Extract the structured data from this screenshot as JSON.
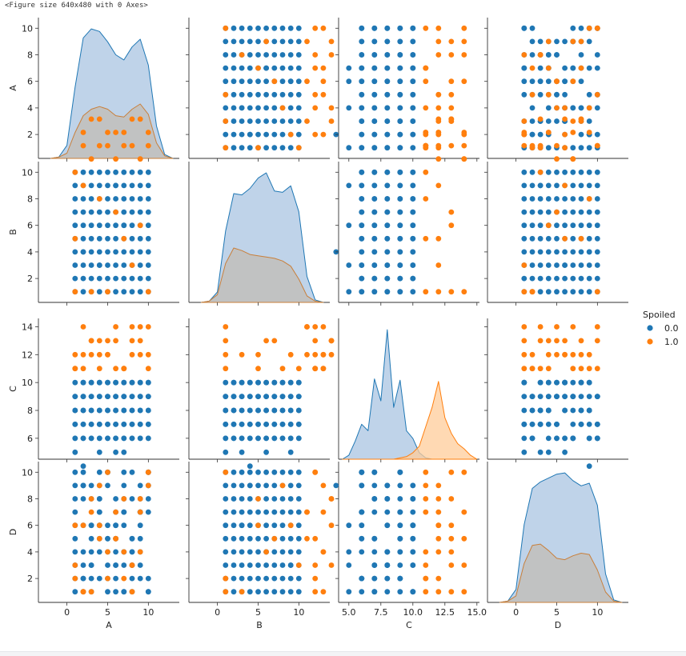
{
  "note": "<Figure size 640x480 with 0 Axes>",
  "colors": {
    "class0": "#1f77b4",
    "class1": "#ff7f0e",
    "kde0_fill": "#aac4e2",
    "kde1_fill": "#c2bcb4",
    "kde1_line": "#c97f3a"
  },
  "chart_data": {
    "type": "pairplot",
    "variables": [
      "A",
      "B",
      "C",
      "D"
    ],
    "hue": {
      "title": "Spoiled",
      "levels": [
        "0.0",
        "1.0"
      ]
    },
    "ranges": {
      "A": [
        -3.5,
        13.8
      ],
      "B": [
        -3.5,
        13.8
      ],
      "C": [
        4.2,
        15.2
      ],
      "D": [
        -3.5,
        13.8
      ]
    },
    "ticks": {
      "A": [
        0,
        5,
        10
      ],
      "B": [
        0,
        5,
        10
      ],
      "C": [
        5.0,
        7.5,
        10.0,
        12.5,
        15.0
      ],
      "D": [
        0,
        5,
        10
      ]
    },
    "tick_labels": {
      "A": [
        "0",
        "5",
        "10"
      ],
      "B": [
        "0",
        "5",
        "10"
      ],
      "C": [
        "5.0",
        "7.5",
        "10.0",
        "12.5",
        "15.0"
      ],
      "D": [
        "0",
        "5",
        "10"
      ]
    },
    "y_ticks_int": [
      2,
      4,
      6,
      8,
      10
    ],
    "y_ticks_C": [
      6,
      8,
      10,
      12,
      14
    ],
    "kde": {
      "A": {
        "grid": [
          -2,
          -1,
          0,
          1,
          2,
          3,
          4,
          5,
          6,
          7,
          8,
          9,
          10,
          11,
          12,
          13
        ],
        "class0": [
          0,
          0.01,
          0.1,
          0.55,
          0.93,
          1.0,
          0.98,
          0.9,
          0.8,
          0.76,
          0.86,
          0.92,
          0.72,
          0.25,
          0.03,
          0
        ],
        "class1": [
          0,
          0.01,
          0.04,
          0.2,
          0.33,
          0.38,
          0.4,
          0.38,
          0.33,
          0.32,
          0.38,
          0.42,
          0.34,
          0.12,
          0.02,
          0
        ]
      },
      "B": {
        "grid": [
          -2,
          -1,
          0,
          1,
          2,
          3,
          4,
          5,
          6,
          7,
          8,
          9,
          10,
          11,
          12,
          13
        ],
        "class0": [
          0,
          0.01,
          0.08,
          0.55,
          0.84,
          0.83,
          0.88,
          0.96,
          1.0,
          0.86,
          0.85,
          0.9,
          0.7,
          0.2,
          0.02,
          0
        ],
        "class1": [
          0,
          0.01,
          0.06,
          0.3,
          0.42,
          0.4,
          0.37,
          0.36,
          0.35,
          0.34,
          0.32,
          0.28,
          0.18,
          0.05,
          0.01,
          0
        ]
      },
      "C": {
        "grid": [
          4.5,
          5.0,
          5.5,
          6.0,
          6.5,
          7.0,
          7.5,
          8.0,
          8.5,
          9.0,
          9.5,
          10.0,
          10.5,
          11.0,
          11.5,
          12.0,
          12.5,
          13.0,
          13.5,
          14.0,
          14.5,
          15.0
        ],
        "class0": [
          0,
          0.03,
          0.14,
          0.27,
          0.22,
          0.62,
          0.45,
          1.0,
          0.4,
          0.61,
          0.22,
          0.16,
          0.05,
          0.01,
          0,
          0,
          0,
          0,
          0,
          0,
          0,
          0
        ],
        "class1": [
          0,
          0,
          0,
          0,
          0,
          0,
          0,
          0,
          0,
          0.01,
          0.02,
          0.05,
          0.1,
          0.25,
          0.4,
          0.6,
          0.32,
          0.2,
          0.12,
          0.08,
          0.03,
          0
        ]
      },
      "D": {
        "grid": [
          -2,
          -1,
          0,
          1,
          2,
          3,
          4,
          5,
          6,
          7,
          8,
          9,
          10,
          11,
          12,
          13
        ],
        "class0": [
          0,
          0.01,
          0.1,
          0.6,
          0.88,
          0.93,
          0.96,
          0.99,
          1.0,
          0.94,
          0.9,
          0.92,
          0.75,
          0.22,
          0.02,
          0
        ],
        "class1": [
          0,
          0.01,
          0.05,
          0.3,
          0.44,
          0.45,
          0.4,
          0.34,
          0.33,
          0.36,
          0.38,
          0.37,
          0.25,
          0.08,
          0.01,
          0
        ]
      }
    },
    "points_class0": [
      [
        1,
        1,
        5,
        1
      ],
      [
        2,
        1,
        6,
        2
      ],
      [
        3,
        1,
        7,
        3
      ],
      [
        4,
        1,
        8,
        4
      ],
      [
        5,
        1,
        9,
        5
      ],
      [
        6,
        1,
        10,
        6
      ],
      [
        7,
        1,
        6,
        7
      ],
      [
        8,
        1,
        7,
        8
      ],
      [
        9,
        1,
        8,
        9
      ],
      [
        10,
        1,
        9,
        10
      ],
      [
        1,
        2,
        6,
        10
      ],
      [
        2,
        2,
        7,
        9
      ],
      [
        3,
        2,
        8,
        8
      ],
      [
        4,
        2,
        9,
        7
      ],
      [
        5,
        2,
        10,
        6
      ],
      [
        6,
        2,
        6,
        5
      ],
      [
        7,
        2,
        7,
        4
      ],
      [
        8,
        2,
        8,
        3
      ],
      [
        9,
        2,
        9,
        2
      ],
      [
        10,
        2,
        10,
        1
      ],
      [
        1,
        3,
        7,
        2
      ],
      [
        2,
        3,
        8,
        4
      ],
      [
        3,
        3,
        9,
        6
      ],
      [
        4,
        3,
        10,
        8
      ],
      [
        5,
        3,
        6,
        10
      ],
      [
        6,
        3,
        7,
        1
      ],
      [
        7,
        3,
        8,
        3
      ],
      [
        8,
        3,
        9,
        5
      ],
      [
        9,
        3,
        10,
        7
      ],
      [
        10,
        3,
        6,
        9
      ],
      [
        1,
        4,
        8,
        3
      ],
      [
        2,
        4,
        9,
        6
      ],
      [
        3,
        4,
        10,
        9
      ],
      [
        4,
        4,
        6,
        2
      ],
      [
        5,
        4,
        7,
        5
      ],
      [
        6,
        4,
        8,
        8
      ],
      [
        7,
        4,
        9,
        1
      ],
      [
        8,
        4,
        10,
        4
      ],
      [
        9,
        4,
        6,
        7
      ],
      [
        10,
        4,
        7,
        10
      ],
      [
        1,
        5,
        9,
        4
      ],
      [
        2,
        5,
        10,
        8
      ],
      [
        3,
        5,
        6,
        1
      ],
      [
        4,
        5,
        7,
        5
      ],
      [
        5,
        5,
        8,
        9
      ],
      [
        6,
        5,
        9,
        2
      ],
      [
        7,
        5,
        10,
        6
      ],
      [
        8,
        5,
        6,
        10
      ],
      [
        9,
        5,
        7,
        3
      ],
      [
        10,
        5,
        8,
        7
      ],
      [
        1,
        6,
        10,
        5
      ],
      [
        2,
        6,
        6,
        9
      ],
      [
        3,
        6,
        7,
        2
      ],
      [
        4,
        6,
        8,
        6
      ],
      [
        5,
        6,
        9,
        10
      ],
      [
        6,
        6,
        10,
        3
      ],
      [
        7,
        6,
        6,
        7
      ],
      [
        8,
        6,
        7,
        1
      ],
      [
        9,
        6,
        8,
        4
      ],
      [
        10,
        6,
        9,
        8
      ],
      [
        1,
        7,
        6,
        6
      ],
      [
        2,
        7,
        7,
        10
      ],
      [
        3,
        7,
        8,
        3
      ],
      [
        4,
        7,
        9,
        7
      ],
      [
        5,
        7,
        10,
        1
      ],
      [
        6,
        7,
        6,
        4
      ],
      [
        7,
        7,
        7,
        8
      ],
      [
        8,
        7,
        8,
        2
      ],
      [
        9,
        7,
        9,
        5
      ],
      [
        10,
        7,
        10,
        9
      ],
      [
        1,
        8,
        7,
        7
      ],
      [
        2,
        8,
        8,
        1
      ],
      [
        3,
        8,
        9,
        4
      ],
      [
        4,
        8,
        10,
        8
      ],
      [
        5,
        8,
        6,
        2
      ],
      [
        6,
        8,
        7,
        5
      ],
      [
        7,
        8,
        8,
        9
      ],
      [
        8,
        8,
        9,
        3
      ],
      [
        9,
        8,
        10,
        6
      ],
      [
        10,
        8,
        6,
        10
      ],
      [
        1,
        9,
        8,
        8
      ],
      [
        2,
        9,
        9,
        2
      ],
      [
        3,
        9,
        10,
        5
      ],
      [
        4,
        9,
        6,
        9
      ],
      [
        5,
        9,
        7,
        3
      ],
      [
        6,
        9,
        8,
        6
      ],
      [
        7,
        9,
        9,
        10
      ],
      [
        8,
        9,
        10,
        4
      ],
      [
        9,
        9,
        6,
        7
      ],
      [
        10,
        9,
        7,
        1
      ],
      [
        1,
        10,
        9,
        9
      ],
      [
        2,
        10,
        10,
        3
      ],
      [
        3,
        10,
        6,
        6
      ],
      [
        4,
        10,
        7,
        10
      ],
      [
        5,
        10,
        8,
        4
      ],
      [
        6,
        10,
        9,
        7
      ],
      [
        7,
        10,
        10,
        1
      ],
      [
        8,
        10,
        6,
        5
      ],
      [
        9,
        10,
        7,
        8
      ],
      [
        10,
        10,
        8,
        2
      ],
      [
        4,
        3,
        5,
        6
      ],
      [
        7,
        6,
        5,
        4
      ],
      [
        2,
        4,
        4,
        9
      ],
      [
        6,
        9,
        5,
        3
      ]
    ],
    "points_class1": [
      [
        1,
        10,
        11,
        3
      ],
      [
        2,
        9,
        12,
        6
      ],
      [
        3,
        1,
        13,
        1
      ],
      [
        4,
        8,
        11,
        9
      ],
      [
        5,
        1,
        12,
        2
      ],
      [
        6,
        7,
        13,
        5
      ],
      [
        7,
        5,
        11,
        8
      ],
      [
        8,
        3,
        12,
        1
      ],
      [
        9,
        6,
        13,
        4
      ],
      [
        10,
        1,
        14,
        10
      ],
      [
        1,
        1,
        11,
        2
      ],
      [
        3,
        11,
        12,
        7
      ],
      [
        5,
        12,
        13,
        10
      ],
      [
        7,
        13,
        11,
        4
      ],
      [
        9,
        14,
        12,
        8
      ],
      [
        2,
        12,
        11,
        1
      ],
      [
        4,
        14,
        13,
        6
      ],
      [
        8,
        12,
        14,
        3
      ],
      [
        10,
        13,
        12,
        9
      ],
      [
        6,
        11,
        14,
        5
      ],
      [
        1,
        5,
        12,
        6
      ],
      [
        7,
        12,
        11,
        2
      ],
      [
        3,
        14,
        13,
        8
      ],
      [
        9,
        11,
        14,
        7
      ],
      [
        10,
        12,
        11,
        10
      ],
      [
        5,
        13,
        12,
        4
      ],
      [
        2,
        13,
        14,
        1
      ],
      [
        8,
        14,
        13,
        3
      ],
      [
        4,
        12,
        12,
        5
      ],
      [
        6,
        13,
        11,
        7
      ]
    ]
  }
}
